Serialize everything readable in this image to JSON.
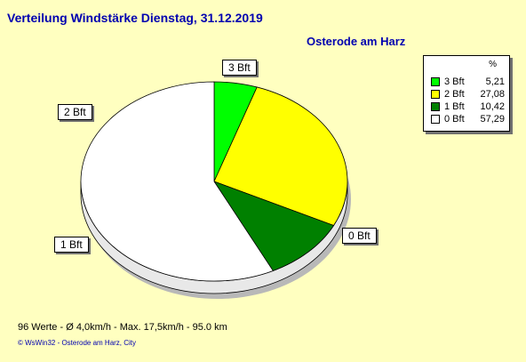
{
  "header": {
    "title": "Verteilung Windstärke  Dienstag, 31.12.2019",
    "location": "Osterode am Harz"
  },
  "footer": {
    "stats": "96 Werte   -   Ø 4,0km/h  -  Max. 17,5km/h   -   95.0 km",
    "credit": "© WsWin32  -  Osterode am Harz, City"
  },
  "legend": {
    "unit": "%"
  },
  "chart_data": {
    "type": "pie",
    "title": "Verteilung Windstärke  Dienstag, 31.12.2019",
    "categories": [
      "3 Bft",
      "2 Bft",
      "1 Bft",
      "0 Bft"
    ],
    "values": [
      5.21,
      27.08,
      10.42,
      57.29
    ],
    "value_labels": [
      "5,21",
      "27,08",
      "10,42",
      "57,29"
    ],
    "colors": [
      "#00ff00",
      "#ffff00",
      "#008000",
      "#ffffff"
    ],
    "legend_position": "top-right"
  }
}
